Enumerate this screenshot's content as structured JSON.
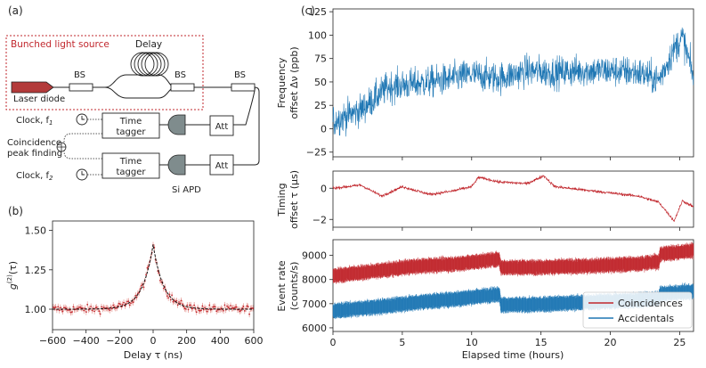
{
  "panel_labels": {
    "a": "(a)",
    "b": "(b)",
    "c": "(c)"
  },
  "diagram": {
    "source_box_title": "Bunched light source",
    "delay_label": "Delay",
    "laser_label": "Laser diode",
    "bs_label": "BS",
    "att_label": "Att",
    "tagger_label_1": "Time",
    "tagger_label_2": "tagger",
    "clock1_label": "Clock, f",
    "clock1_sub": "1",
    "clock2_label": "Clock, f",
    "clock2_sub": "2",
    "coincidence_label_1": "Coincidence",
    "coincidence_label_2": "peak finding",
    "apd_label": "Si APD",
    "plus_symbol": "⊕"
  },
  "colors": {
    "red": "#c1272d",
    "blue": "#1f77b4",
    "diode": "#b33a3a",
    "apd": "#7f8c8d"
  },
  "chart_data": [
    {
      "id": "g2",
      "type": "line",
      "ylabel_main": "g",
      "ylabel_sup": "(2)",
      "ylabel_rest": "(τ)",
      "xlabel": "Delay τ (ns)",
      "xlim": [
        -600,
        600
      ],
      "ylim": [
        0.87,
        1.56
      ],
      "xticks": [
        -600,
        -400,
        -200,
        0,
        200,
        400,
        600
      ],
      "xtick_labels": [
        "−600",
        "−400",
        "−200",
        "0",
        "200",
        "400",
        "600"
      ],
      "yticks": [
        1.0,
        1.25,
        1.5
      ],
      "ytick_labels": [
        "1.00",
        "1.25",
        "1.50"
      ],
      "model": {
        "baseline": 1.0,
        "peak": 1.41,
        "decay_ns": 62
      },
      "data_noise": 0.018
    },
    {
      "id": "freq",
      "type": "line",
      "ylabel_1": "Frequency",
      "ylabel_2": "offset Δν (ppb)",
      "xlim": [
        0,
        26
      ],
      "ylim": [
        -30,
        128
      ],
      "yticks": [
        -25,
        0,
        25,
        50,
        75,
        100,
        125
      ],
      "ytick_labels": [
        "−25",
        "0",
        "25",
        "50",
        "75",
        "100",
        "125"
      ],
      "xticks": [
        0,
        5,
        10,
        15,
        20,
        25
      ],
      "trend": [
        [
          0,
          8
        ],
        [
          2,
          20
        ],
        [
          4,
          45
        ],
        [
          6,
          48
        ],
        [
          8,
          52
        ],
        [
          10,
          58
        ],
        [
          12,
          54
        ],
        [
          14,
          62
        ],
        [
          16,
          60
        ],
        [
          18,
          62
        ],
        [
          20,
          62
        ],
        [
          22,
          60
        ],
        [
          23.5,
          52
        ],
        [
          24.6,
          85
        ],
        [
          25.2,
          98
        ],
        [
          26,
          55
        ]
      ],
      "noise": 22,
      "color": "#1f77b4"
    },
    {
      "id": "timing",
      "type": "line",
      "ylabel_1": "Timing",
      "ylabel_2": "offset τ (μs)",
      "xlim": [
        0,
        26
      ],
      "ylim": [
        -2.5,
        1.1
      ],
      "yticks": [
        -2,
        0
      ],
      "ytick_labels": [
        "−2",
        "0"
      ],
      "xticks": [
        0,
        5,
        10,
        15,
        20,
        25
      ],
      "trend": [
        [
          0,
          0.0
        ],
        [
          2,
          0.2
        ],
        [
          3.5,
          -0.5
        ],
        [
          5,
          0.1
        ],
        [
          7,
          -0.4
        ],
        [
          8.5,
          -0.2
        ],
        [
          10,
          0.1
        ],
        [
          10.5,
          0.7
        ],
        [
          12,
          0.4
        ],
        [
          14,
          0.3
        ],
        [
          15.2,
          0.8
        ],
        [
          16,
          0.1
        ],
        [
          18,
          -0.1
        ],
        [
          20,
          -0.3
        ],
        [
          22,
          -0.5
        ],
        [
          23.5,
          -0.9
        ],
        [
          24.6,
          -2.1
        ],
        [
          25.2,
          -0.8
        ],
        [
          26,
          -1.2
        ]
      ],
      "noise": 0.12,
      "color": "#c1272d"
    },
    {
      "id": "rates",
      "type": "area",
      "ylabel_1": "Event rate",
      "ylabel_2": "(counts/s)",
      "xlabel": "Elapsed time (hours)",
      "xlim": [
        0,
        26
      ],
      "ylim": [
        5850,
        9650
      ],
      "yticks": [
        6000,
        7000,
        8000,
        9000
      ],
      "ytick_labels": [
        "6000",
        "7000",
        "8000",
        "9000"
      ],
      "xticks": [
        0,
        5,
        10,
        15,
        20,
        25
      ],
      "xtick_labels": [
        "0",
        "5",
        "10",
        "15",
        "20",
        "25"
      ],
      "series": [
        {
          "name": "Coincidences",
          "color": "#c1272d",
          "width": 550,
          "trend": [
            [
              0,
              8150
            ],
            [
              3,
              8350
            ],
            [
              6,
              8550
            ],
            [
              9,
              8650
            ],
            [
              12,
              8850
            ],
            [
              12.1,
              8500
            ],
            [
              14,
              8500
            ],
            [
              18,
              8550
            ],
            [
              22,
              8650
            ],
            [
              23.5,
              8750
            ],
            [
              23.6,
              9050
            ],
            [
              26,
              9200
            ]
          ]
        },
        {
          "name": "Accidentals",
          "color": "#1f77b4",
          "width": 560,
          "trend": [
            [
              0,
              6700
            ],
            [
              3,
              6850
            ],
            [
              6,
              7050
            ],
            [
              9,
              7200
            ],
            [
              12,
              7400
            ],
            [
              12.1,
              6950
            ],
            [
              14,
              6950
            ],
            [
              18,
              7050
            ],
            [
              22,
              7150
            ],
            [
              23.5,
              7200
            ],
            [
              23.6,
              7400
            ],
            [
              26,
              7500
            ]
          ]
        }
      ]
    }
  ]
}
